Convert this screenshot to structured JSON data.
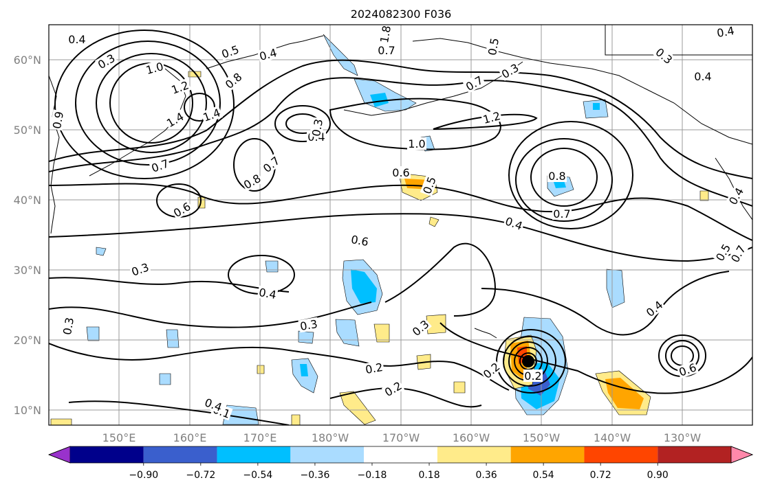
{
  "title": "2024082300 F036",
  "map": {
    "lat_labels": [
      "60°N",
      "50°N",
      "40°N",
      "30°N",
      "20°N",
      "10°N"
    ],
    "lon_labels": [
      "150°E",
      "160°E",
      "170°E",
      "180°W",
      "170°W",
      "160°W",
      "150°W",
      "140°W",
      "130°W"
    ],
    "grid": true,
    "extent": {
      "lon_min": "140°E",
      "lon_max": "120°W",
      "lat_min": "8°N",
      "lat_max": "65°N"
    },
    "contour_labels": [
      "0.4",
      "0.3",
      "1.0",
      "0.5",
      "0.4",
      "1.2",
      "0.8",
      "1.4",
      "1.4",
      "0.9",
      "0.7",
      "0.8",
      "0.7",
      "0.6",
      "0.4",
      "0.3",
      "1.8",
      "0.7",
      "0.5",
      "0.3",
      "0.4",
      "1.2",
      "1.0",
      "0.6",
      "0.5",
      "0.8",
      "0.7",
      "0.7",
      "0.4",
      "0.4",
      "0.3",
      "0.3",
      "0.4",
      "0.6",
      "0.5",
      "0.7",
      "0.3",
      "0.2",
      "0.2",
      "0.3",
      "0.2",
      "0.1",
      "0.2",
      "0.4",
      "0.6",
      "0.3",
      "0.4",
      "0.4"
    ],
    "storm_marker": {
      "lon": "151°W",
      "lat": "17°N"
    }
  },
  "colorbar": {
    "ticks": [
      "−0.90",
      "−0.72",
      "−0.54",
      "−0.36",
      "−0.18",
      "0.18",
      "0.36",
      "0.54",
      "0.72",
      "0.90"
    ],
    "colors": [
      "#9932cc",
      "#00008b",
      "#3a5fcd",
      "#00bfff",
      "#aadcff",
      "#ffffff",
      "#ffeb8a",
      "#ffa500",
      "#ff4500",
      "#b22222",
      "#ff88aa"
    ]
  },
  "colors": {
    "shading_pos_light": "#ffeb8a",
    "shading_pos_mid": "#ffa500",
    "shading_pos_strong": "#ff4500",
    "shading_neg_light": "#aadcff",
    "shading_neg_mid": "#00bfff",
    "shading_neg_strong": "#3a5fcd"
  }
}
